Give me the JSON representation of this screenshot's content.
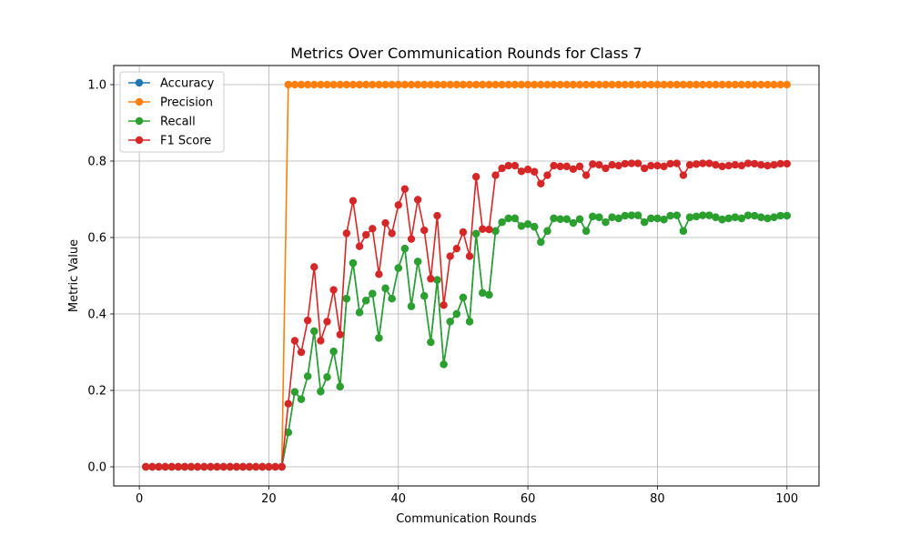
{
  "chart_data": {
    "type": "line",
    "title": "Metrics Over Communication Rounds for Class 7",
    "xlabel": "Communication Rounds",
    "ylabel": "Metric Value",
    "xlim": [
      -3.95,
      104.95
    ],
    "ylim": [
      -0.05,
      1.05
    ],
    "xticks": [
      0,
      20,
      40,
      60,
      80,
      100
    ],
    "yticks": [
      0.0,
      0.2,
      0.4,
      0.6,
      0.8,
      1.0
    ],
    "xtick_labels": [
      "0",
      "20",
      "40",
      "60",
      "80",
      "100"
    ],
    "ytick_labels": [
      "0.0",
      "0.2",
      "0.4",
      "0.6",
      "0.8",
      "1.0"
    ],
    "grid": true,
    "legend_position": "top-left",
    "x": [
      1,
      2,
      3,
      4,
      5,
      6,
      7,
      8,
      9,
      10,
      11,
      12,
      13,
      14,
      15,
      16,
      17,
      18,
      19,
      20,
      21,
      22,
      23,
      24,
      25,
      26,
      27,
      28,
      29,
      30,
      31,
      32,
      33,
      34,
      35,
      36,
      37,
      38,
      39,
      40,
      41,
      42,
      43,
      44,
      45,
      46,
      47,
      48,
      49,
      50,
      51,
      52,
      53,
      54,
      55,
      56,
      57,
      58,
      59,
      60,
      61,
      62,
      63,
      64,
      65,
      66,
      67,
      68,
      69,
      70,
      71,
      72,
      73,
      74,
      75,
      76,
      77,
      78,
      79,
      80,
      81,
      82,
      83,
      84,
      85,
      86,
      87,
      88,
      89,
      90,
      91,
      92,
      93,
      94,
      95,
      96,
      97,
      98,
      99,
      100
    ],
    "series": [
      {
        "name": "Accuracy",
        "color": "#1f77b4",
        "values": [
          0,
          0,
          0,
          0,
          0,
          0,
          0,
          0,
          0,
          0,
          0,
          0,
          0,
          0,
          0,
          0,
          0,
          0,
          0,
          0,
          0,
          0,
          0.09,
          0.196,
          0.177,
          0.237,
          0.355,
          0.197,
          0.235,
          0.302,
          0.21,
          0.44,
          0.533,
          0.404,
          0.435,
          0.453,
          0.337,
          0.467,
          0.44,
          0.52,
          0.571,
          0.42,
          0.537,
          0.447,
          0.326,
          0.489,
          0.268,
          0.38,
          0.4,
          0.443,
          0.38,
          0.61,
          0.455,
          0.45,
          0.617,
          0.64,
          0.65,
          0.65,
          0.63,
          0.635,
          0.628,
          0.588,
          0.617,
          0.65,
          0.648,
          0.648,
          0.638,
          0.648,
          0.617,
          0.655,
          0.653,
          0.64,
          0.653,
          0.65,
          0.657,
          0.658,
          0.658,
          0.64,
          0.65,
          0.65,
          0.647,
          0.657,
          0.658,
          0.617,
          0.653,
          0.655,
          0.658,
          0.658,
          0.653,
          0.647,
          0.65,
          0.653,
          0.65,
          0.658,
          0.657,
          0.653,
          0.65,
          0.653,
          0.657,
          0.657
        ]
      },
      {
        "name": "Precision",
        "color": "#ff7f0e",
        "values": [
          0,
          0,
          0,
          0,
          0,
          0,
          0,
          0,
          0,
          0,
          0,
          0,
          0,
          0,
          0,
          0,
          0,
          0,
          0,
          0,
          0,
          0,
          1,
          1,
          1,
          1,
          1,
          1,
          1,
          1,
          1,
          1,
          1,
          1,
          1,
          1,
          1,
          1,
          1,
          1,
          1,
          1,
          1,
          1,
          1,
          1,
          1,
          1,
          1,
          1,
          1,
          1,
          1,
          1,
          1,
          1,
          1,
          1,
          1,
          1,
          1,
          1,
          1,
          1,
          1,
          1,
          1,
          1,
          1,
          1,
          1,
          1,
          1,
          1,
          1,
          1,
          1,
          1,
          1,
          1,
          1,
          1,
          1,
          1,
          1,
          1,
          1,
          1,
          1,
          1,
          1,
          1,
          1,
          1,
          1,
          1,
          1,
          1,
          1,
          1
        ]
      },
      {
        "name": "Recall",
        "color": "#2ca02c",
        "values": [
          0,
          0,
          0,
          0,
          0,
          0,
          0,
          0,
          0,
          0,
          0,
          0,
          0,
          0,
          0,
          0,
          0,
          0,
          0,
          0,
          0,
          0,
          0.09,
          0.196,
          0.177,
          0.237,
          0.355,
          0.197,
          0.235,
          0.302,
          0.21,
          0.44,
          0.533,
          0.404,
          0.435,
          0.453,
          0.337,
          0.467,
          0.44,
          0.52,
          0.571,
          0.42,
          0.537,
          0.447,
          0.326,
          0.489,
          0.268,
          0.38,
          0.4,
          0.443,
          0.38,
          0.61,
          0.455,
          0.45,
          0.617,
          0.64,
          0.65,
          0.65,
          0.63,
          0.635,
          0.628,
          0.588,
          0.617,
          0.65,
          0.648,
          0.648,
          0.638,
          0.648,
          0.617,
          0.655,
          0.653,
          0.64,
          0.653,
          0.65,
          0.657,
          0.658,
          0.658,
          0.64,
          0.65,
          0.65,
          0.647,
          0.657,
          0.658,
          0.617,
          0.653,
          0.655,
          0.658,
          0.658,
          0.653,
          0.647,
          0.65,
          0.653,
          0.65,
          0.658,
          0.657,
          0.653,
          0.65,
          0.653,
          0.657,
          0.657
        ]
      },
      {
        "name": "F1 Score",
        "color": "#d62728",
        "values": [
          0,
          0,
          0,
          0,
          0,
          0,
          0,
          0,
          0,
          0,
          0,
          0,
          0,
          0,
          0,
          0,
          0,
          0,
          0,
          0,
          0,
          0,
          0.165,
          0.33,
          0.3,
          0.383,
          0.523,
          0.33,
          0.38,
          0.463,
          0.346,
          0.611,
          0.696,
          0.577,
          0.607,
          0.623,
          0.504,
          0.638,
          0.611,
          0.685,
          0.727,
          0.596,
          0.699,
          0.619,
          0.492,
          0.657,
          0.423,
          0.551,
          0.571,
          0.614,
          0.551,
          0.759,
          0.622,
          0.621,
          0.763,
          0.781,
          0.788,
          0.788,
          0.773,
          0.778,
          0.772,
          0.741,
          0.763,
          0.788,
          0.786,
          0.786,
          0.779,
          0.786,
          0.763,
          0.792,
          0.79,
          0.781,
          0.79,
          0.788,
          0.793,
          0.794,
          0.794,
          0.781,
          0.788,
          0.788,
          0.786,
          0.793,
          0.794,
          0.763,
          0.79,
          0.792,
          0.794,
          0.794,
          0.79,
          0.786,
          0.788,
          0.79,
          0.788,
          0.794,
          0.793,
          0.79,
          0.788,
          0.79,
          0.793,
          0.793
        ]
      }
    ]
  }
}
